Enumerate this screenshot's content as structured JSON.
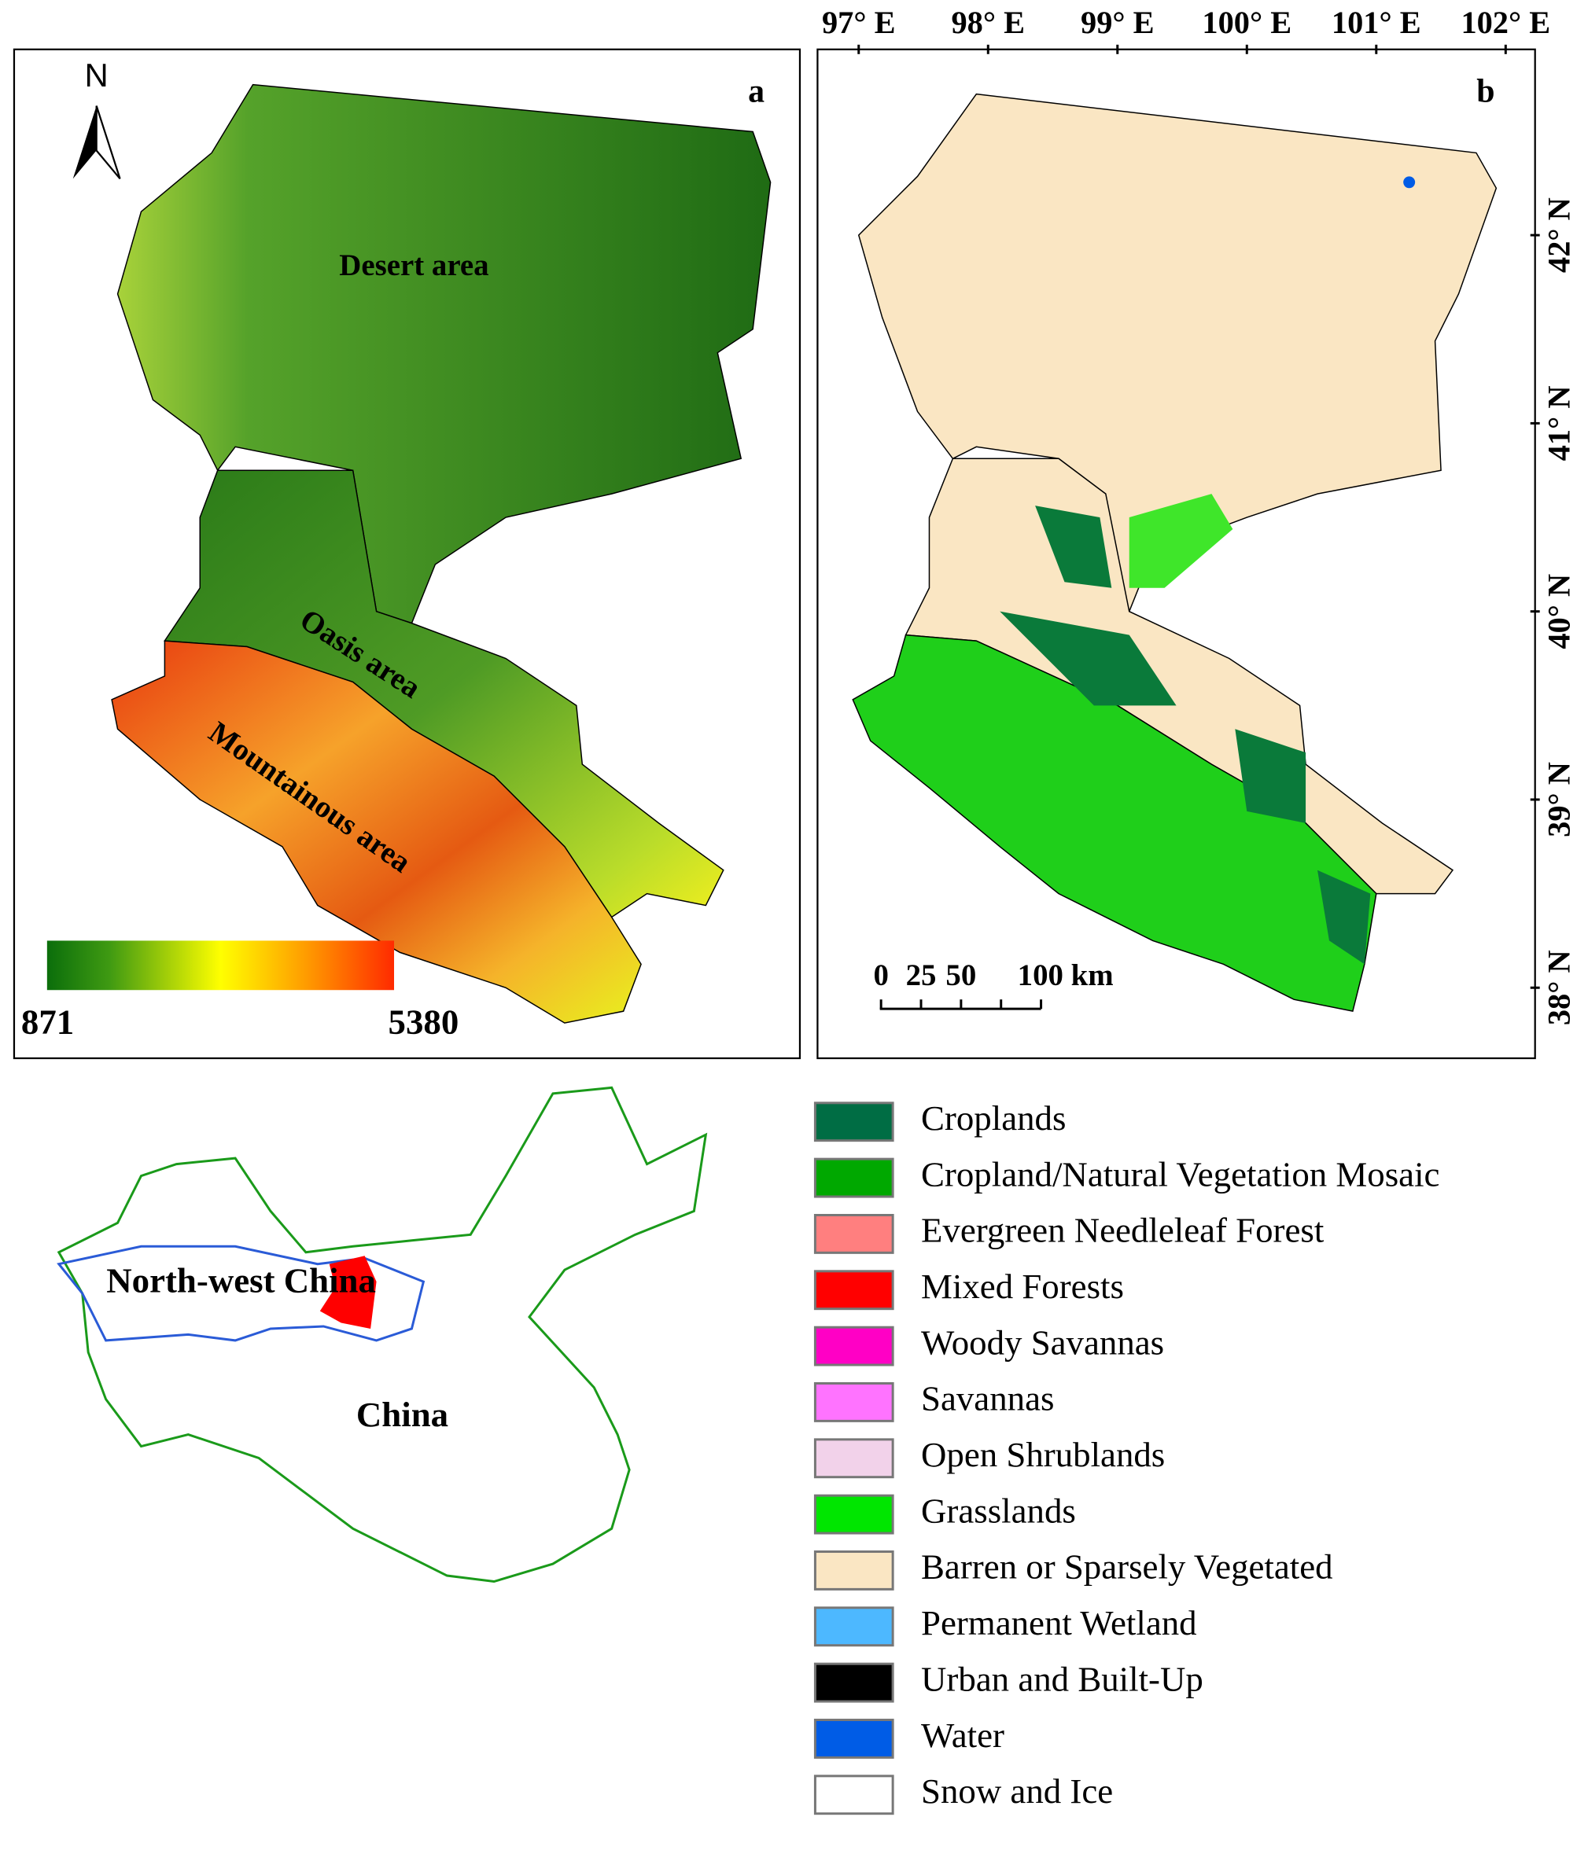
{
  "panel_a": {
    "label": "a",
    "north": "N",
    "regions": [
      "Desert area",
      "Oasis area",
      "Mountainous area"
    ],
    "colorbar": {
      "min": 871,
      "max": 5380
    }
  },
  "panel_b": {
    "label": "b",
    "longitudes": [
      "97° E",
      "98° E",
      "99° E",
      "100° E",
      "101° E",
      "102° E"
    ],
    "latitudes": [
      "42° N",
      "41° N",
      "40° N",
      "39° N",
      "38° N"
    ],
    "scale_bar": [
      "0",
      "25",
      "50",
      "100 km"
    ]
  },
  "overview": {
    "regions": [
      "North-west China",
      "China"
    ]
  },
  "legend": [
    {
      "name": "Croplands",
      "color": "#006d44"
    },
    {
      "name": "Cropland/Natural Vegetation Mosaic",
      "color": "#00a800"
    },
    {
      "name": "Evergreen Needleleaf Forest",
      "color": "#ff7f7f"
    },
    {
      "name": "Mixed Forests",
      "color": "#ff0000"
    },
    {
      "name": "Woody Savannas",
      "color": "#ff00c5"
    },
    {
      "name": "Savannas",
      "color": "#ff73ff"
    },
    {
      "name": "Open Shrublands",
      "color": "#f2d2ea"
    },
    {
      "name": "Grasslands",
      "color": "#00e600"
    },
    {
      "name": "Barren or Sparsely Vegetated",
      "color": "#fae6c3"
    },
    {
      "name": "Permanent Wetland",
      "color": "#4db8ff"
    },
    {
      "name": "Urban and Built-Up",
      "color": "#000000"
    },
    {
      "name": "Water",
      "color": "#005ce6"
    },
    {
      "name": "Snow and Ice",
      "color": "#ffffff"
    }
  ]
}
